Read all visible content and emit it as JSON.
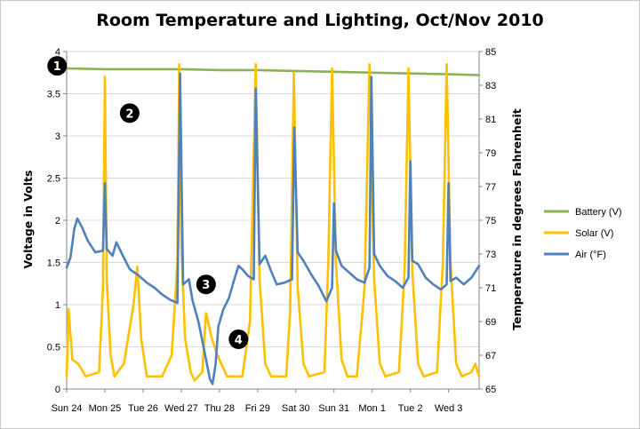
{
  "chart_data": {
    "type": "line",
    "title": "Room Temperature and Lighting, Oct/Nov 2010",
    "ylabel_left": "Voltage in Volts",
    "ylabel_right": "Temperature in degrees Fahrenheit",
    "ylim_left": [
      0,
      4
    ],
    "ylim_right": [
      65,
      85
    ],
    "yticks_left": [
      "0",
      "0.5",
      "1",
      "1.5",
      "2",
      "2.5",
      "3",
      "3.5",
      "4"
    ],
    "yticks_right": [
      "65",
      "67",
      "69",
      "71",
      "73",
      "75",
      "77",
      "79",
      "81",
      "83",
      "85"
    ],
    "x_ticks": [
      "Sun 24",
      "Mon 25",
      "Tue 26",
      "Wed 27",
      "Thu 28",
      "Fri 29",
      "Sat 30",
      "Sun 31",
      "Mon 1",
      "Tue 2",
      "Wed 3"
    ],
    "x_range_days": [
      0,
      10.8
    ],
    "grid": "horizontal",
    "legend_position": "right",
    "series": [
      {
        "name": "Battery (V)",
        "axis": "left",
        "color": "#8db255",
        "points": [
          [
            0,
            3.8
          ],
          [
            1,
            3.79
          ],
          [
            2,
            3.79
          ],
          [
            3,
            3.79
          ],
          [
            4,
            3.78
          ],
          [
            5,
            3.78
          ],
          [
            6,
            3.77
          ],
          [
            7,
            3.76
          ],
          [
            8,
            3.75
          ],
          [
            9,
            3.74
          ],
          [
            10,
            3.73
          ],
          [
            10.8,
            3.72
          ]
        ]
      },
      {
        "name": "Solar (V)",
        "axis": "left",
        "color": "#ffc000",
        "points": [
          [
            0,
            0.15
          ],
          [
            0.05,
            0.95
          ],
          [
            0.15,
            0.35
          ],
          [
            0.3,
            0.3
          ],
          [
            0.5,
            0.15
          ],
          [
            0.85,
            0.2
          ],
          [
            0.95,
            1.2
          ],
          [
            1.0,
            3.7
          ],
          [
            1.05,
            1.3
          ],
          [
            1.15,
            0.4
          ],
          [
            1.25,
            0.15
          ],
          [
            1.5,
            0.3
          ],
          [
            1.75,
            1.0
          ],
          [
            1.85,
            1.45
          ],
          [
            1.95,
            0.6
          ],
          [
            2.1,
            0.15
          ],
          [
            2.5,
            0.15
          ],
          [
            2.75,
            0.4
          ],
          [
            2.9,
            1.5
          ],
          [
            2.95,
            3.85
          ],
          [
            3.0,
            1.7
          ],
          [
            3.1,
            0.6
          ],
          [
            3.25,
            0.2
          ],
          [
            3.35,
            0.1
          ],
          [
            3.55,
            0.2
          ],
          [
            3.65,
            0.9
          ],
          [
            3.8,
            0.6
          ],
          [
            3.95,
            0.4
          ],
          [
            4.2,
            0.15
          ],
          [
            4.6,
            0.15
          ],
          [
            4.8,
            0.8
          ],
          [
            4.95,
            3.85
          ],
          [
            5.05,
            1.3
          ],
          [
            5.2,
            0.3
          ],
          [
            5.35,
            0.15
          ],
          [
            5.75,
            0.15
          ],
          [
            5.85,
            0.9
          ],
          [
            5.95,
            3.75
          ],
          [
            6.05,
            1.2
          ],
          [
            6.2,
            0.3
          ],
          [
            6.35,
            0.15
          ],
          [
            6.75,
            0.2
          ],
          [
            6.85,
            1.5
          ],
          [
            6.95,
            3.8
          ],
          [
            7.05,
            1.5
          ],
          [
            7.2,
            0.35
          ],
          [
            7.35,
            0.15
          ],
          [
            7.6,
            0.15
          ],
          [
            7.8,
            1.2
          ],
          [
            7.93,
            3.85
          ],
          [
            8.05,
            1.3
          ],
          [
            8.2,
            0.3
          ],
          [
            8.35,
            0.15
          ],
          [
            8.7,
            0.2
          ],
          [
            8.85,
            1.4
          ],
          [
            8.95,
            3.8
          ],
          [
            9.05,
            1.4
          ],
          [
            9.2,
            0.3
          ],
          [
            9.35,
            0.15
          ],
          [
            9.7,
            0.2
          ],
          [
            9.85,
            1.5
          ],
          [
            9.95,
            3.85
          ],
          [
            10.05,
            1.5
          ],
          [
            10.2,
            0.3
          ],
          [
            10.35,
            0.15
          ],
          [
            10.6,
            0.2
          ],
          [
            10.7,
            0.3
          ],
          [
            10.8,
            0.15
          ]
        ]
      },
      {
        "name": "Air (°F)",
        "axis": "right",
        "color": "#4f81bd",
        "points": [
          [
            0,
            72.2
          ],
          [
            0.1,
            72.8
          ],
          [
            0.2,
            74.5
          ],
          [
            0.28,
            75.1
          ],
          [
            0.4,
            74.6
          ],
          [
            0.55,
            73.8
          ],
          [
            0.75,
            73.1
          ],
          [
            0.95,
            73.2
          ],
          [
            1.0,
            77.2
          ],
          [
            1.05,
            73.3
          ],
          [
            1.2,
            72.9
          ],
          [
            1.3,
            73.7
          ],
          [
            1.45,
            73.0
          ],
          [
            1.65,
            72.1
          ],
          [
            1.9,
            71.7
          ],
          [
            2.1,
            71.3
          ],
          [
            2.3,
            71.0
          ],
          [
            2.5,
            70.6
          ],
          [
            2.7,
            70.3
          ],
          [
            2.9,
            70.1
          ],
          [
            2.97,
            83.7
          ],
          [
            3.05,
            71.2
          ],
          [
            3.2,
            71.5
          ],
          [
            3.3,
            70.2
          ],
          [
            3.45,
            69.0
          ],
          [
            3.6,
            67.3
          ],
          [
            3.75,
            65.6
          ],
          [
            3.82,
            65.3
          ],
          [
            3.9,
            66.5
          ],
          [
            3.97,
            68.7
          ],
          [
            4.1,
            69.7
          ],
          [
            4.25,
            70.4
          ],
          [
            4.35,
            71.2
          ],
          [
            4.5,
            72.3
          ],
          [
            4.6,
            72.1
          ],
          [
            4.75,
            71.7
          ],
          [
            4.9,
            71.5
          ],
          [
            4.95,
            82.8
          ],
          [
            5.05,
            72.4
          ],
          [
            5.2,
            72.9
          ],
          [
            5.35,
            72.0
          ],
          [
            5.5,
            71.2
          ],
          [
            5.7,
            71.3
          ],
          [
            5.9,
            71.5
          ],
          [
            5.96,
            80.5
          ],
          [
            6.05,
            73.1
          ],
          [
            6.2,
            72.6
          ],
          [
            6.4,
            71.8
          ],
          [
            6.6,
            71.1
          ],
          [
            6.8,
            70.2
          ],
          [
            6.95,
            71.0
          ],
          [
            7.0,
            76.0
          ],
          [
            7.05,
            73.2
          ],
          [
            7.2,
            72.3
          ],
          [
            7.4,
            71.9
          ],
          [
            7.6,
            71.5
          ],
          [
            7.8,
            71.3
          ],
          [
            7.93,
            72.2
          ],
          [
            7.98,
            83.5
          ],
          [
            8.05,
            73.0
          ],
          [
            8.2,
            72.3
          ],
          [
            8.4,
            71.7
          ],
          [
            8.6,
            71.4
          ],
          [
            8.8,
            71.0
          ],
          [
            8.95,
            71.6
          ],
          [
            9.0,
            78.5
          ],
          [
            9.05,
            72.6
          ],
          [
            9.2,
            72.4
          ],
          [
            9.4,
            71.6
          ],
          [
            9.6,
            71.2
          ],
          [
            9.8,
            70.9
          ],
          [
            9.95,
            71.2
          ],
          [
            10.0,
            77.2
          ],
          [
            10.05,
            71.4
          ],
          [
            10.2,
            71.6
          ],
          [
            10.4,
            71.2
          ],
          [
            10.6,
            71.6
          ],
          [
            10.8,
            72.3
          ]
        ]
      }
    ],
    "markers": [
      {
        "label": "1",
        "at": [
          -0.25,
          3.83
        ]
      },
      {
        "label": "2",
        "at": [
          1.65,
          3.27
        ]
      },
      {
        "label": "3",
        "at": [
          3.65,
          1.24
        ]
      },
      {
        "label": "4",
        "at": [
          4.5,
          0.59
        ]
      }
    ]
  }
}
